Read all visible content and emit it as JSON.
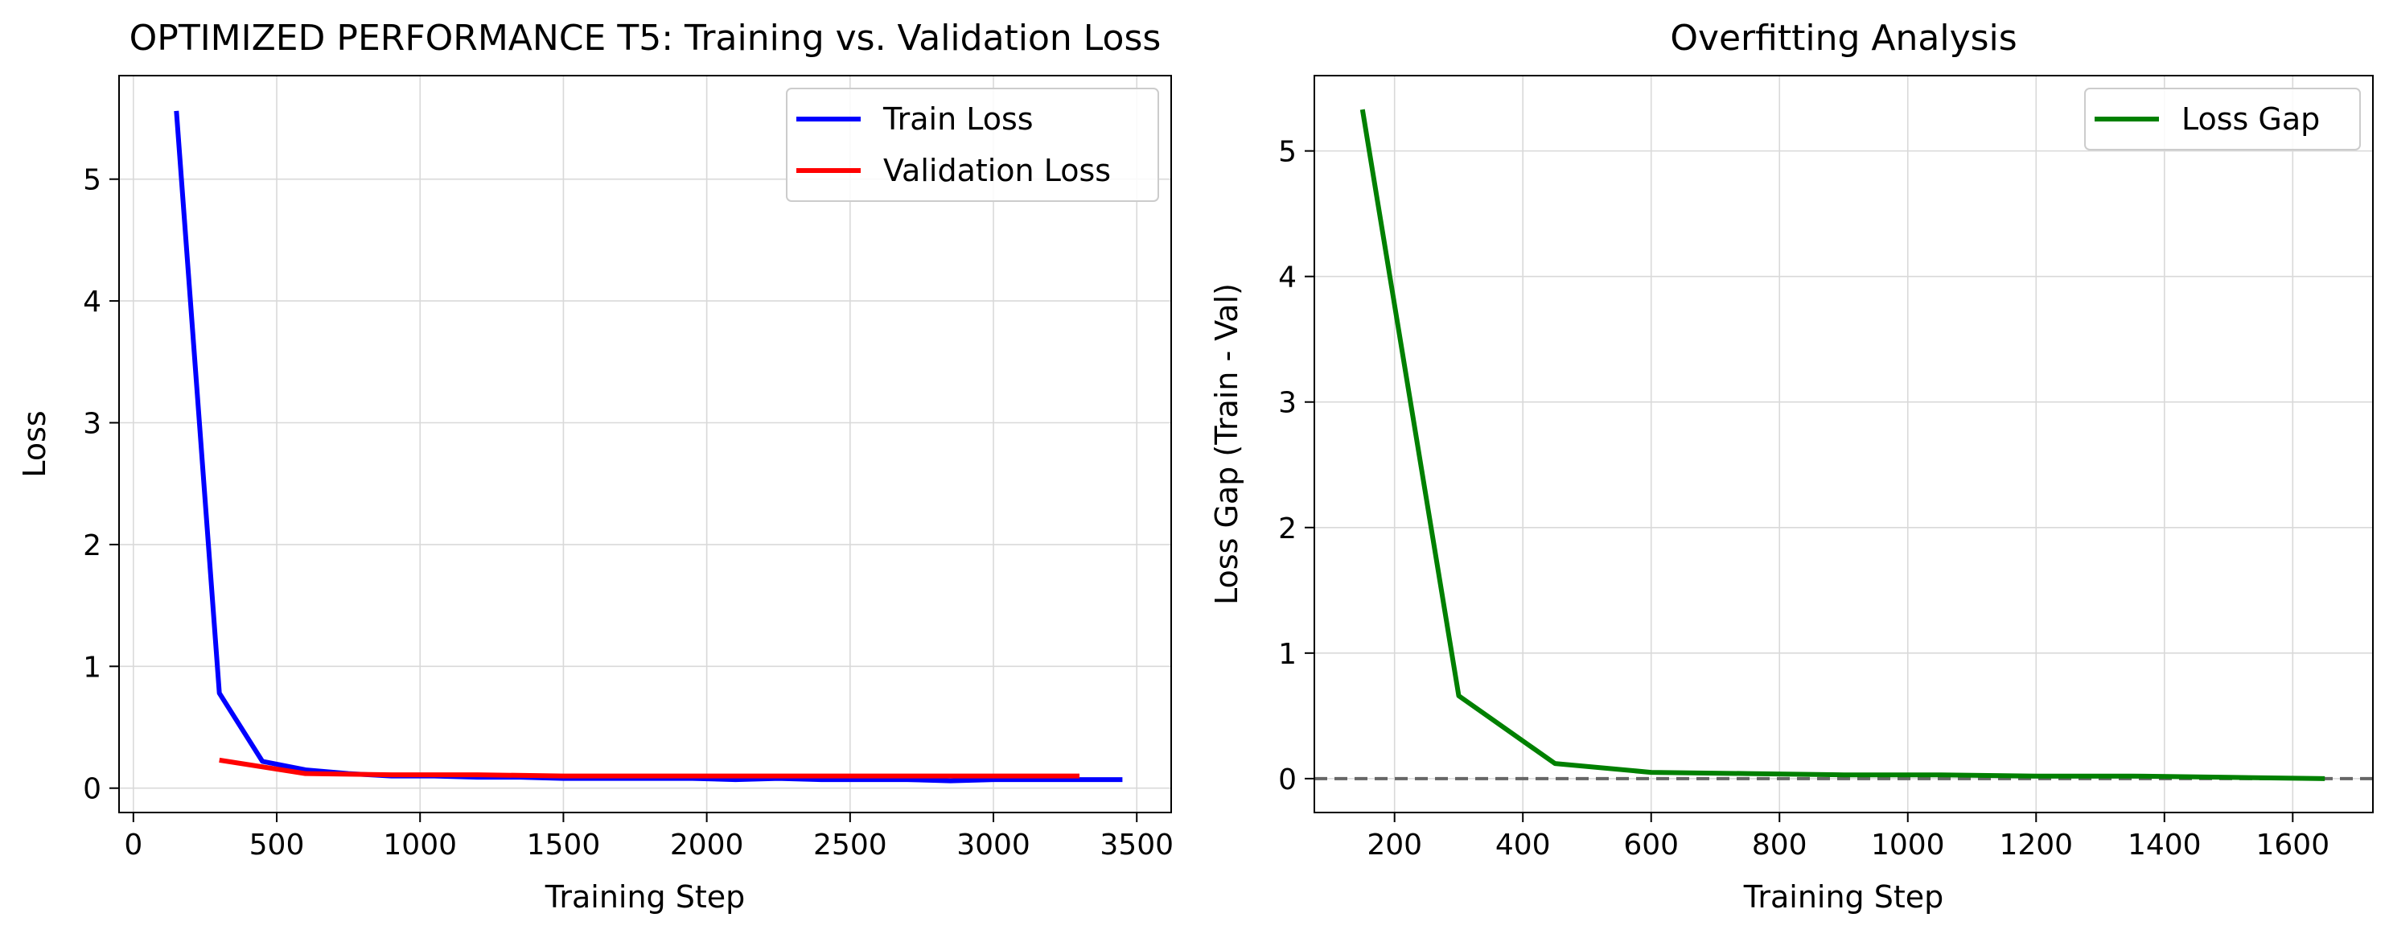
{
  "chart_data": [
    {
      "type": "line",
      "title": "OPTIMIZED PERFORMANCE T5: Training vs. Validation Loss",
      "xlabel": "Training Step",
      "ylabel": "Loss",
      "xlim": [
        -50,
        3620
      ],
      "ylim": [
        -0.2,
        5.85
      ],
      "xticks": [
        0,
        500,
        1000,
        1500,
        2000,
        2500,
        3000,
        3500
      ],
      "yticks": [
        0,
        1,
        2,
        3,
        4,
        5
      ],
      "grid": true,
      "legend_position": "top-right",
      "series": [
        {
          "name": "Train Loss",
          "color": "#0000ff",
          "x": [
            150,
            300,
            450,
            600,
            750,
            900,
            1050,
            1200,
            1350,
            1500,
            1650,
            1800,
            1950,
            2100,
            2250,
            2400,
            2550,
            2700,
            2850,
            3000,
            3150,
            3300,
            3450
          ],
          "y": [
            5.56,
            0.78,
            0.22,
            0.15,
            0.12,
            0.1,
            0.1,
            0.09,
            0.09,
            0.08,
            0.08,
            0.08,
            0.08,
            0.07,
            0.08,
            0.07,
            0.07,
            0.07,
            0.06,
            0.07,
            0.07,
            0.07,
            0.07
          ]
        },
        {
          "name": "Validation Loss",
          "color": "#ff0000",
          "x": [
            300,
            600,
            900,
            1200,
            1500,
            1800,
            2100,
            2400,
            2700,
            3000,
            3300
          ],
          "y": [
            0.23,
            0.12,
            0.11,
            0.11,
            0.1,
            0.1,
            0.1,
            0.1,
            0.1,
            0.1,
            0.1
          ]
        }
      ]
    },
    {
      "type": "line",
      "title": "Overfitting Analysis",
      "xlabel": "Training Step",
      "ylabel": "Loss Gap (Train - Val)",
      "xlim": [
        75,
        1725
      ],
      "ylim": [
        -0.27,
        5.6
      ],
      "xticks": [
        200,
        400,
        600,
        800,
        1000,
        1200,
        1400,
        1600
      ],
      "yticks": [
        0,
        1,
        2,
        3,
        4,
        5
      ],
      "grid": true,
      "legend_position": "top-right",
      "reference_line": {
        "y": 0,
        "color": "#666666",
        "style": "dashed"
      },
      "series": [
        {
          "name": "Loss Gap",
          "color": "#008000",
          "x": [
            150,
            300,
            450,
            600,
            750,
            900,
            1050,
            1200,
            1350,
            1500,
            1650
          ],
          "y": [
            5.33,
            0.66,
            0.12,
            0.05,
            0.04,
            0.03,
            0.03,
            0.02,
            0.02,
            0.01,
            0.0
          ]
        }
      ]
    }
  ]
}
